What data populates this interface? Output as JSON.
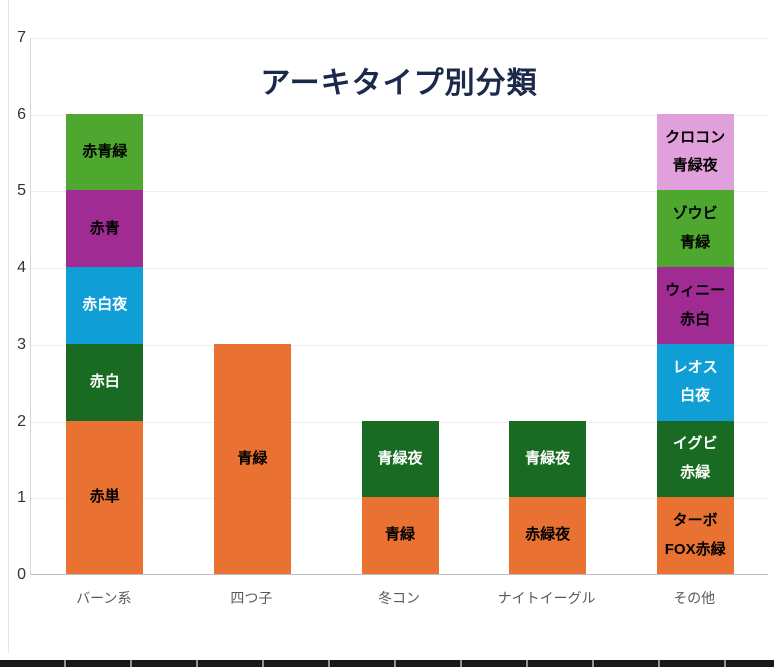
{
  "chart_data": {
    "type": "bar",
    "stacked": true,
    "title": "アーキタイプ別分類",
    "xlabel": "",
    "ylabel": "",
    "ylim": [
      0,
      7
    ],
    "grid": true,
    "legend": "none",
    "y_ticks": [
      0,
      1,
      2,
      3,
      4,
      5,
      6,
      7
    ],
    "categories": [
      "バーン系",
      "四つ子",
      "冬コン",
      "ナイトイーグル",
      "その他"
    ],
    "palette": {
      "orange": "#E97132",
      "dark_green": "#196B24",
      "blue": "#0F9ED5",
      "purple": "#A02B93",
      "green": "#4EA72E",
      "pink": "#E0A0DC"
    },
    "bars": [
      {
        "category": "バーン系",
        "total": 6,
        "segments": [
          {
            "lines": [
              "赤単"
            ],
            "value": 2,
            "color": "#E97132",
            "text_color": "#000000"
          },
          {
            "lines": [
              "赤白"
            ],
            "value": 1,
            "color": "#196B24",
            "text_color": "#FFFFFF"
          },
          {
            "lines": [
              "赤白夜"
            ],
            "value": 1,
            "color": "#0F9ED5",
            "text_color": "#FFFFFF"
          },
          {
            "lines": [
              "赤青"
            ],
            "value": 1,
            "color": "#A02B93",
            "text_color": "#000000"
          },
          {
            "lines": [
              "赤青緑"
            ],
            "value": 1,
            "color": "#4EA72E",
            "text_color": "#000000"
          }
        ]
      },
      {
        "category": "四つ子",
        "total": 3,
        "segments": [
          {
            "lines": [
              "青緑"
            ],
            "value": 3,
            "color": "#E97132",
            "text_color": "#000000"
          }
        ]
      },
      {
        "category": "冬コン",
        "total": 2,
        "segments": [
          {
            "lines": [
              "青緑"
            ],
            "value": 1,
            "color": "#E97132",
            "text_color": "#000000"
          },
          {
            "lines": [
              "青緑夜"
            ],
            "value": 1,
            "color": "#196B24",
            "text_color": "#FFFFFF"
          }
        ]
      },
      {
        "category": "ナイトイーグル",
        "total": 2,
        "segments": [
          {
            "lines": [
              "赤緑夜"
            ],
            "value": 1,
            "color": "#E97132",
            "text_color": "#000000"
          },
          {
            "lines": [
              "青緑夜"
            ],
            "value": 1,
            "color": "#196B24",
            "text_color": "#FFFFFF"
          }
        ]
      },
      {
        "category": "その他",
        "total": 6,
        "segments": [
          {
            "lines": [
              "ターボ",
              "FOX赤緑"
            ],
            "value": 1,
            "color": "#E97132",
            "text_color": "#000000"
          },
          {
            "lines": [
              "イグビ",
              "赤緑"
            ],
            "value": 1,
            "color": "#196B24",
            "text_color": "#FFFFFF"
          },
          {
            "lines": [
              "レオス",
              "白夜"
            ],
            "value": 1,
            "color": "#0F9ED5",
            "text_color": "#FFFFFF"
          },
          {
            "lines": [
              "ウィニー",
              "赤白"
            ],
            "value": 1,
            "color": "#A02B93",
            "text_color": "#000000"
          },
          {
            "lines": [
              "ゾウビ",
              "青緑"
            ],
            "value": 1,
            "color": "#4EA72E",
            "text_color": "#000000"
          },
          {
            "lines": [
              "クロコン",
              "青緑夜"
            ],
            "value": 1,
            "color": "#E0A0DC",
            "text_color": "#000000"
          }
        ]
      }
    ]
  }
}
